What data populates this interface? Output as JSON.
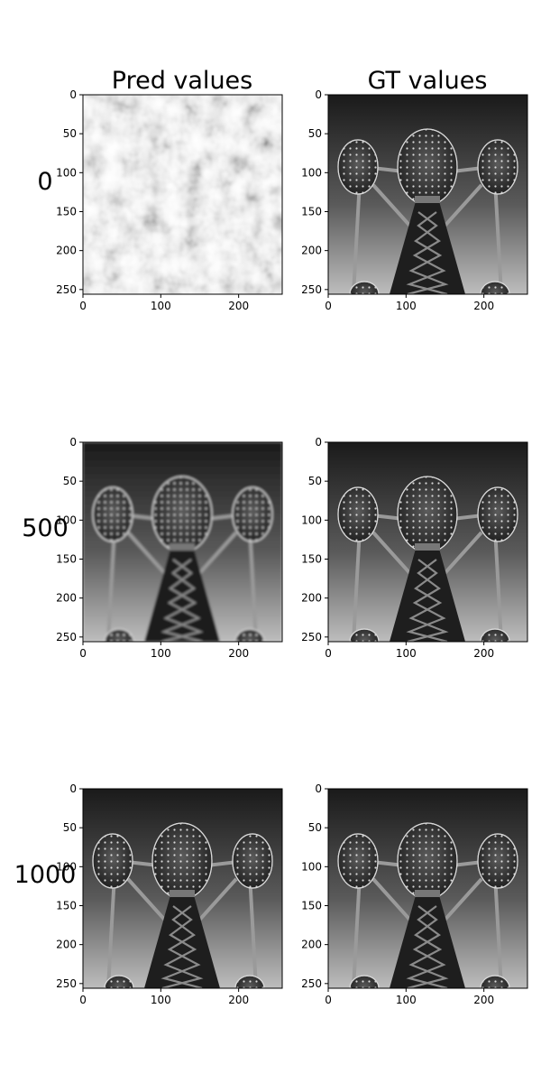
{
  "chart_data": {
    "type": "image-grid",
    "columns": [
      {
        "title": "Pred values"
      },
      {
        "title": "GT values"
      }
    ],
    "rows": [
      {
        "label": "0",
        "pred_content": "noise"
      },
      {
        "label": "500",
        "pred_content": "blurred-reconstruction"
      },
      {
        "label": "1000",
        "pred_content": "reconstruction"
      }
    ],
    "image_size": [
      256,
      256
    ],
    "xlim": [
      0,
      256
    ],
    "ylim": [
      256,
      0
    ],
    "xticks": [
      0,
      100,
      200
    ],
    "yticks": [
      0,
      50,
      100,
      150,
      200,
      250
    ],
    "colormap": "gray"
  }
}
